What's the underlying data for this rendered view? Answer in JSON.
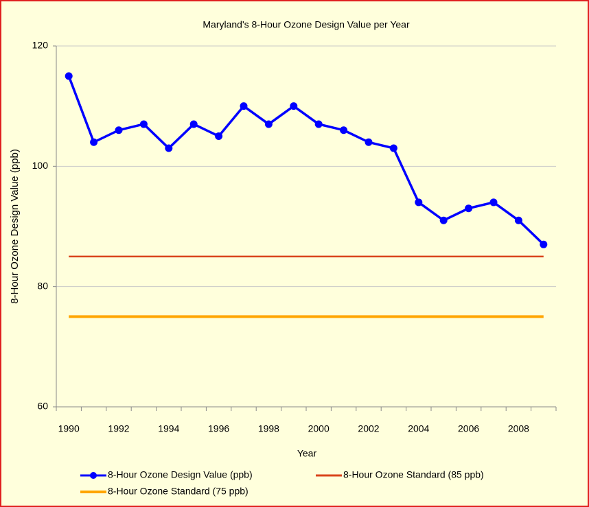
{
  "chart_data": {
    "type": "line",
    "title": "Maryland's 8-Hour Ozone Design Value per Year",
    "xlabel": "Year",
    "ylabel": "8-Hour Ozone Design Value (ppb)",
    "categories": [
      "1990",
      null,
      "1992",
      null,
      "1994",
      null,
      "1996",
      null,
      "1998",
      null,
      "2000",
      null,
      "2002",
      null,
      "2004",
      null,
      "2006",
      null,
      "2008",
      null
    ],
    "series": [
      {
        "name": "8-Hour Ozone Design Value (ppb)",
        "color": "#0000ff",
        "marker": true,
        "values": [
          115,
          104,
          106,
          107,
          103,
          107,
          105,
          110,
          107,
          110,
          107,
          106,
          104,
          103,
          94,
          91,
          93,
          94,
          91,
          87
        ]
      },
      {
        "name": "8-Hour Ozone Standard (85 ppb)",
        "color": "#d9441c",
        "marker": false,
        "values": [
          85,
          85,
          85,
          85,
          85,
          85,
          85,
          85,
          85,
          85,
          85,
          85,
          85,
          85,
          85,
          85,
          85,
          85,
          85,
          85
        ]
      },
      {
        "name": "8-Hour Ozone Standard (75 ppb)",
        "color": "#ffa500",
        "marker": false,
        "values": [
          75,
          75,
          75,
          75,
          75,
          75,
          75,
          75,
          75,
          75,
          75,
          75,
          75,
          75,
          75,
          75,
          75,
          75,
          75,
          75
        ]
      }
    ],
    "ylim": [
      60,
      120
    ],
    "yticks": [
      60,
      80,
      100,
      120
    ],
    "grid": true,
    "legend": "bottom"
  }
}
